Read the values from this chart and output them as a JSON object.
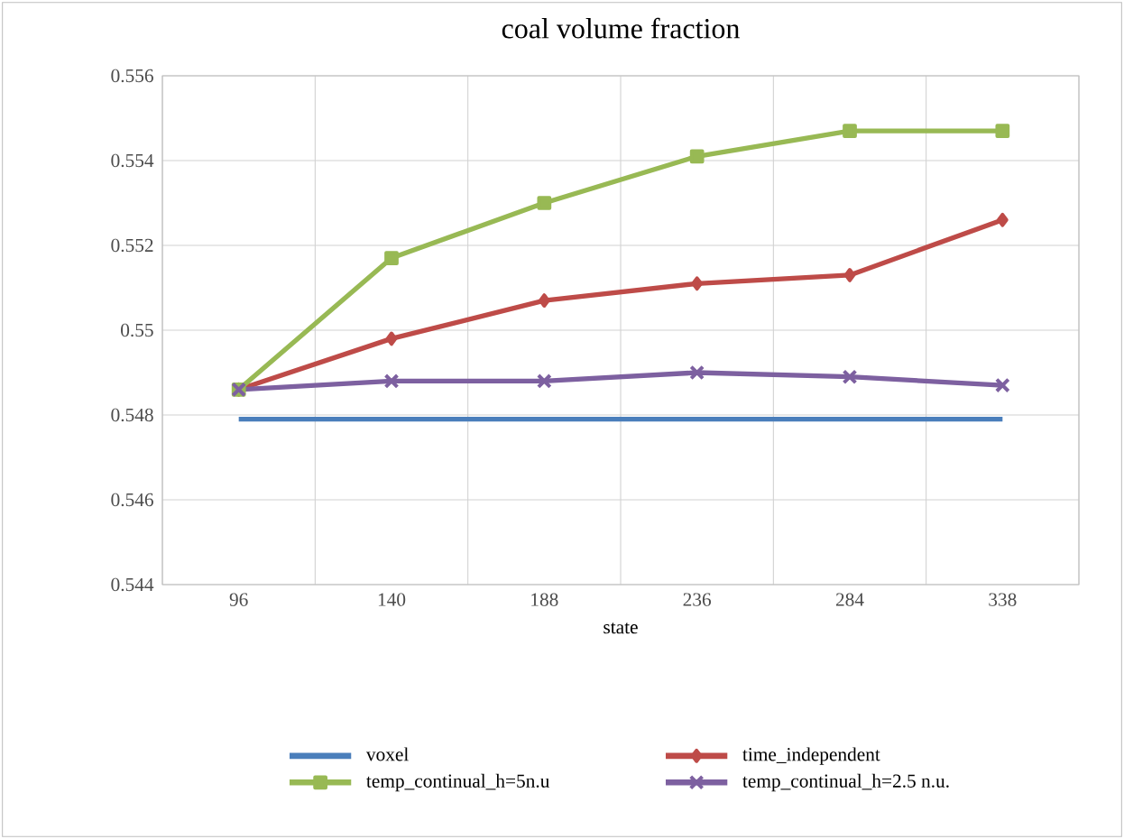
{
  "chart_data": {
    "type": "line",
    "title": "coal volume fraction",
    "xlabel": "state",
    "categories": [
      "96",
      "140",
      "188",
      "236",
      "284",
      "338"
    ],
    "ylim": [
      0.544,
      0.556
    ],
    "yticks": [
      0.544,
      0.546,
      0.548,
      {
        "value": 0.55,
        "label": "0.55"
      },
      0.552,
      0.554,
      0.556
    ],
    "grid": true,
    "legend": "bottom",
    "line_style": "solid",
    "series": [
      {
        "name": "voxel",
        "color": "#4a7ebb",
        "marker": "none",
        "values": [
          0.5479,
          0.5479,
          0.5479,
          0.5479,
          0.5479,
          0.5479
        ]
      },
      {
        "name": "time_independent",
        "color": "#be4b48",
        "marker": "diamond",
        "values": [
          0.5486,
          0.5498,
          0.5507,
          0.5511,
          0.5513,
          0.5526
        ]
      },
      {
        "name": "temp_continual_h=5n.u",
        "color": "#98b954",
        "marker": "square",
        "values": [
          0.5486,
          0.5517,
          0.553,
          0.5541,
          0.5547,
          0.5547
        ]
      },
      {
        "name": "temp_continual_h=2.5 n.u.",
        "color": "#7d60a0",
        "marker": "cross",
        "values": [
          0.5486,
          0.5488,
          0.5488,
          0.549,
          0.5489,
          0.5487
        ]
      }
    ]
  }
}
